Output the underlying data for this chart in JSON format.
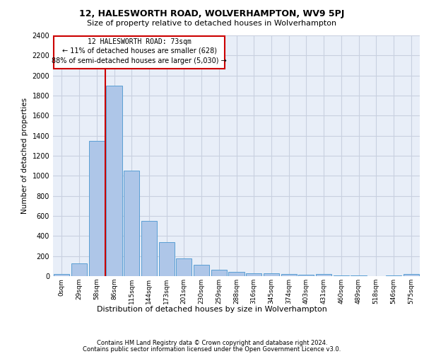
{
  "title1": "12, HALESWORTH ROAD, WOLVERHAMPTON, WV9 5PJ",
  "title2": "Size of property relative to detached houses in Wolverhampton",
  "xlabel": "Distribution of detached houses by size in Wolverhampton",
  "ylabel": "Number of detached properties",
  "footnote1": "Contains HM Land Registry data © Crown copyright and database right 2024.",
  "footnote2": "Contains public sector information licensed under the Open Government Licence v3.0.",
  "annotation_line1": "12 HALESWORTH ROAD: 73sqm",
  "annotation_line2": "← 11% of detached houses are smaller (628)",
  "annotation_line3": "88% of semi-detached houses are larger (5,030) →",
  "bar_labels": [
    "0sqm",
    "29sqm",
    "58sqm",
    "86sqm",
    "115sqm",
    "144sqm",
    "173sqm",
    "201sqm",
    "230sqm",
    "259sqm",
    "288sqm",
    "316sqm",
    "345sqm",
    "374sqm",
    "403sqm",
    "431sqm",
    "460sqm",
    "489sqm",
    "518sqm",
    "546sqm",
    "575sqm"
  ],
  "bar_values": [
    20,
    130,
    1350,
    1900,
    1050,
    550,
    340,
    175,
    115,
    65,
    40,
    30,
    25,
    20,
    15,
    20,
    5,
    5,
    0,
    5,
    20
  ],
  "bar_color": "#aec6e8",
  "bar_edge_color": "#5a9fd4",
  "bg_color": "#e8eef8",
  "grid_color": "#c8d0e0",
  "vline_x": 2.5,
  "vline_color": "#cc0000",
  "ylim": [
    0,
    2400
  ],
  "yticks": [
    0,
    200,
    400,
    600,
    800,
    1000,
    1200,
    1400,
    1600,
    1800,
    2000,
    2200,
    2400
  ]
}
